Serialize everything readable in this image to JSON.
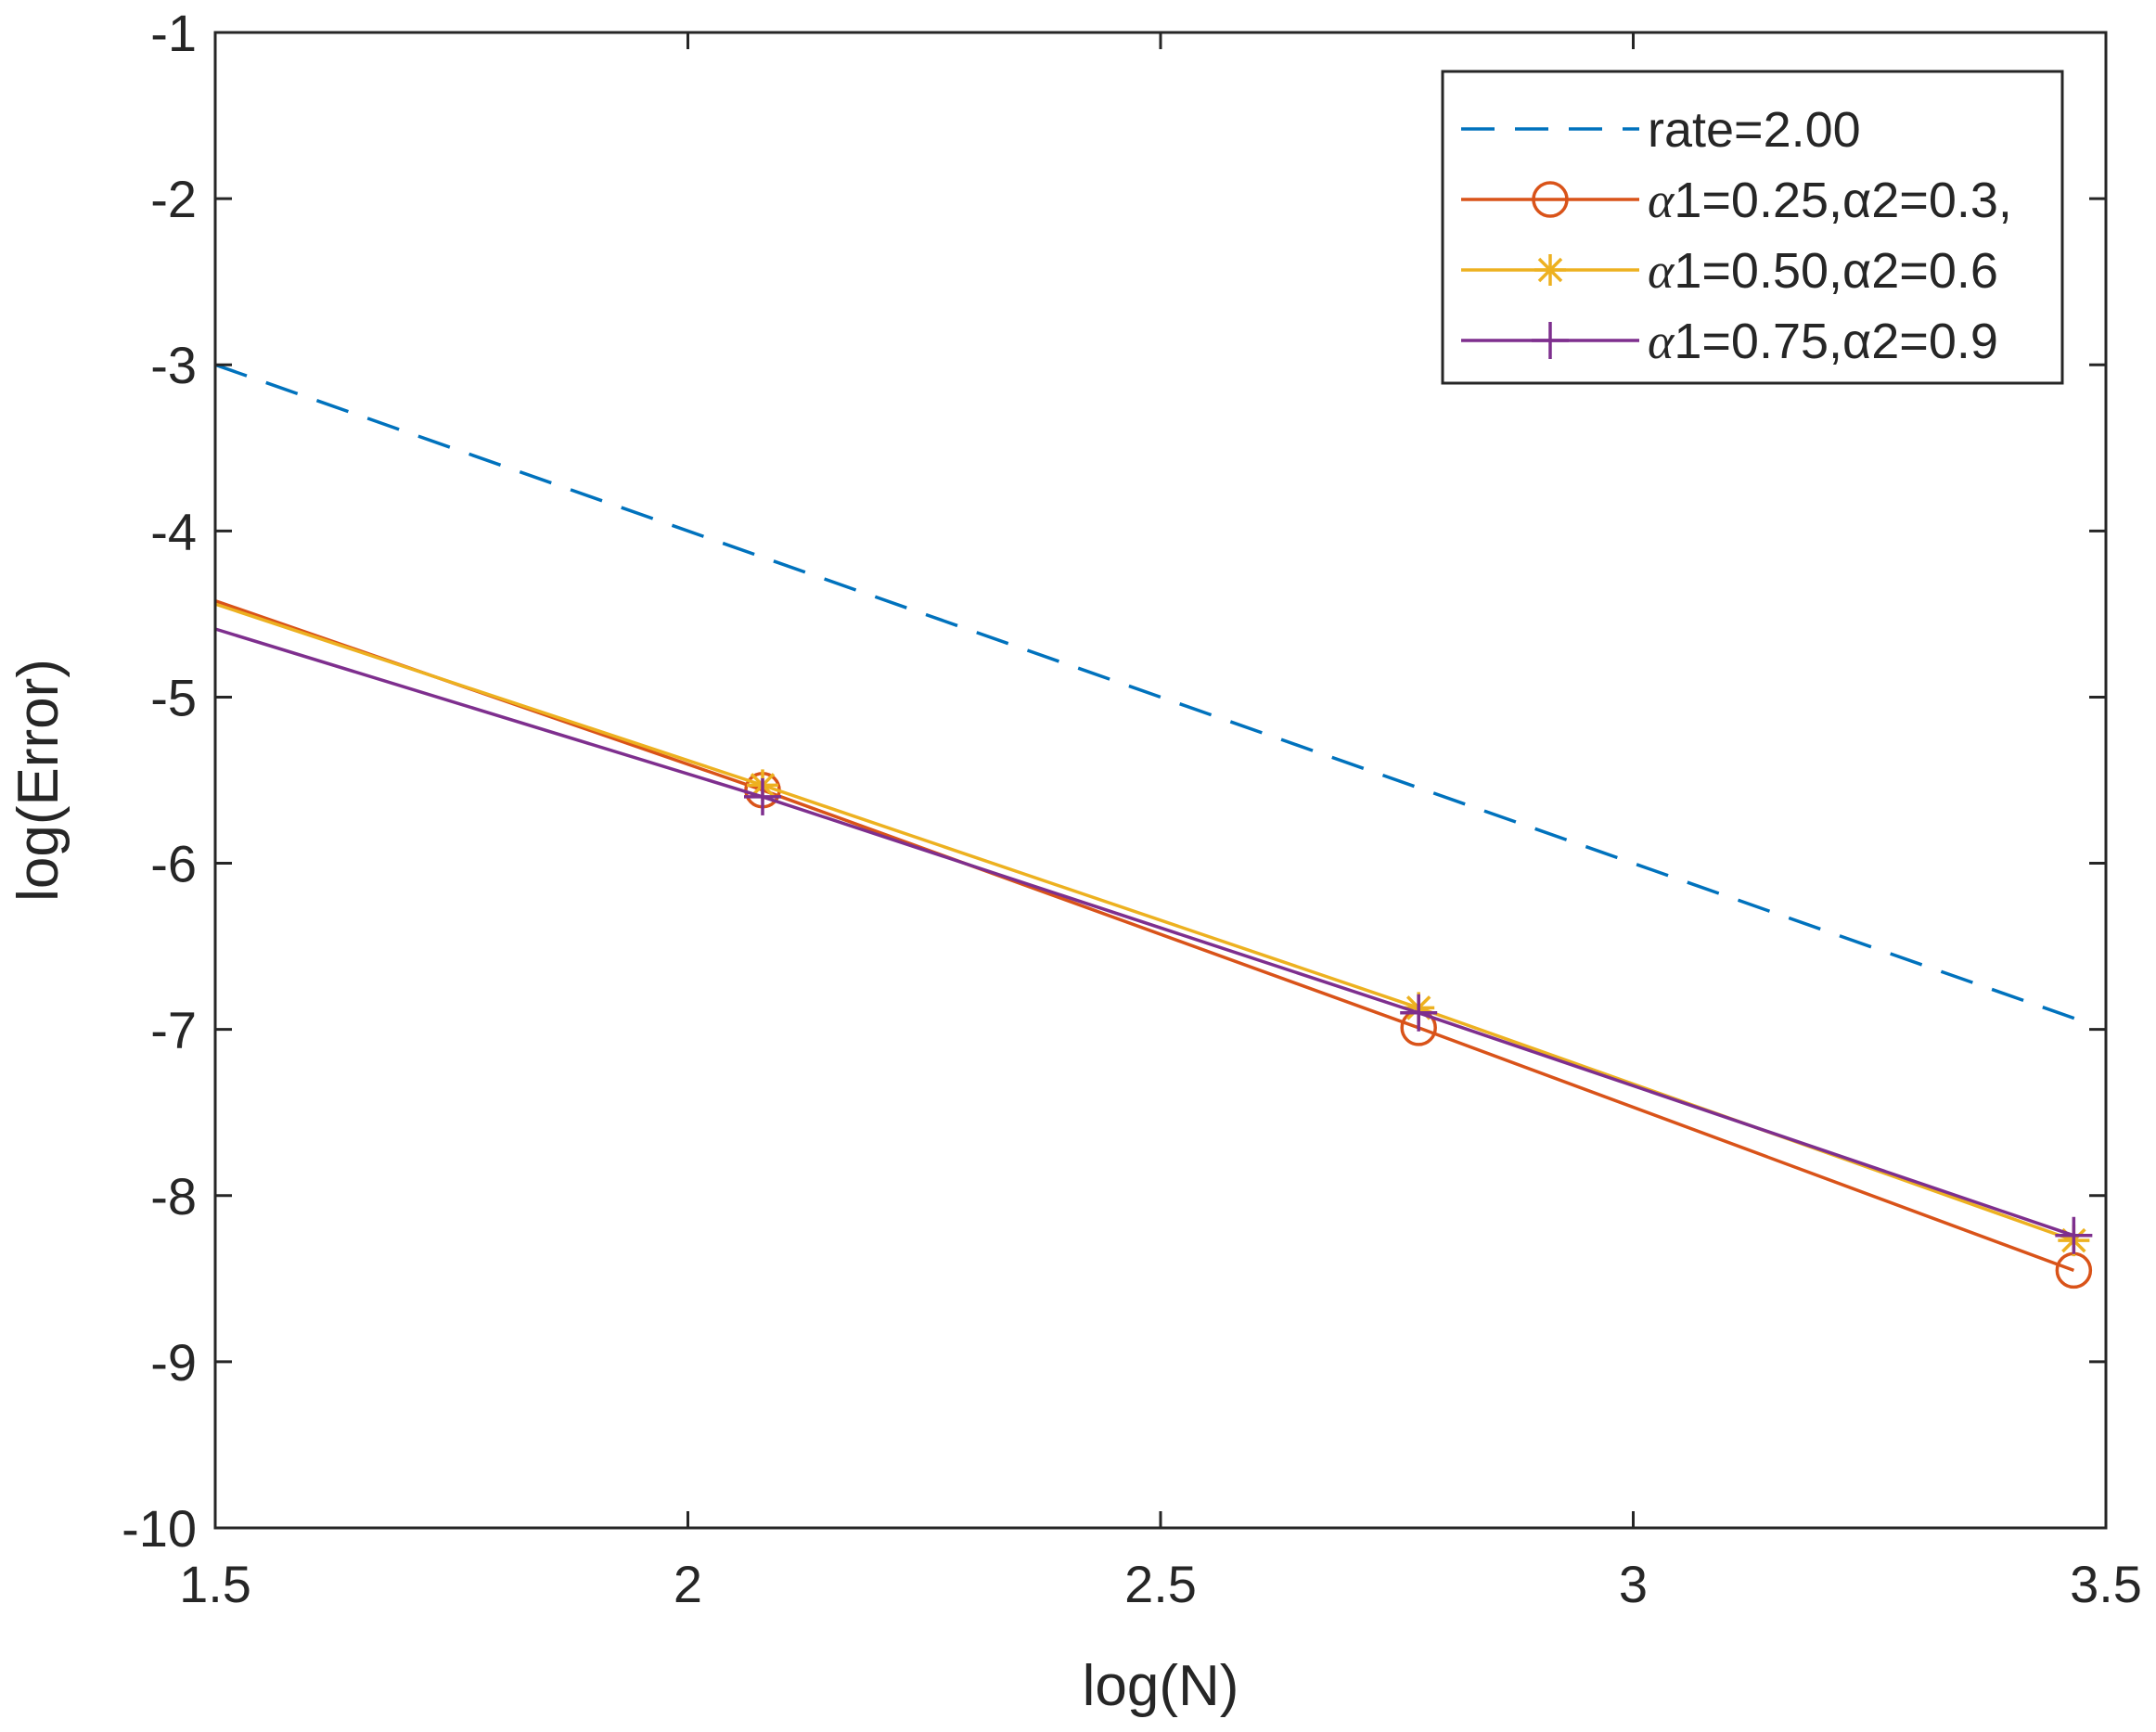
{
  "chart_data": {
    "type": "line",
    "title": "",
    "xlabel": "log(N)",
    "ylabel": "log(Error)",
    "xlim": [
      1.5,
      3.5
    ],
    "ylim": [
      -10,
      -1
    ],
    "xticks": [
      1.5,
      2,
      2.5,
      3,
      3.5
    ],
    "xtick_labels": [
      "1.5",
      "2",
      "2.5",
      "3",
      "3.5"
    ],
    "yticks": [
      -10,
      -9,
      -8,
      -7,
      -6,
      -5,
      -4,
      -3,
      -2,
      -1
    ],
    "ytick_labels": [
      "-10",
      "-9",
      "-8",
      "-7",
      "-6",
      "-5",
      "-4",
      "-3",
      "-2",
      "-1"
    ],
    "grid": false,
    "legend_position": "top-right",
    "series": [
      {
        "name": "rate=2.00",
        "legend_prefix": "",
        "legend_main": "rate=2.00",
        "color": "#0072BD",
        "line_style": "dashed",
        "marker": "none",
        "x": [
          1.5,
          3.47
        ],
        "y": [
          -3.0,
          -6.94
        ]
      },
      {
        "name": "α1=0.25,α2=0.3,",
        "legend_prefix": "α",
        "legend_main": "1=0.25,α2=0.3,",
        "color": "#D95319",
        "line_style": "solid",
        "marker": "circle",
        "x": [
          1.5,
          2.079,
          2.773,
          3.466
        ],
        "y": [
          -4.42,
          -5.56,
          -6.99,
          -8.45
        ]
      },
      {
        "name": "α1=0.50,α2=0.6",
        "legend_prefix": "α",
        "legend_main": "1=0.50,α2=0.6",
        "color": "#EDB120",
        "line_style": "solid",
        "marker": "asterisk",
        "x": [
          1.5,
          2.079,
          2.773,
          3.466
        ],
        "y": [
          -4.44,
          -5.53,
          -6.87,
          -8.27
        ]
      },
      {
        "name": "α1=0.75,α2=0.9",
        "legend_prefix": "α",
        "legend_main": "1=0.75,α2=0.9",
        "color": "#7E2F8E",
        "line_style": "solid",
        "marker": "plus",
        "x": [
          1.5,
          2.079,
          2.773,
          3.466
        ],
        "y": [
          -4.59,
          -5.6,
          -6.9,
          -8.24
        ]
      }
    ]
  }
}
